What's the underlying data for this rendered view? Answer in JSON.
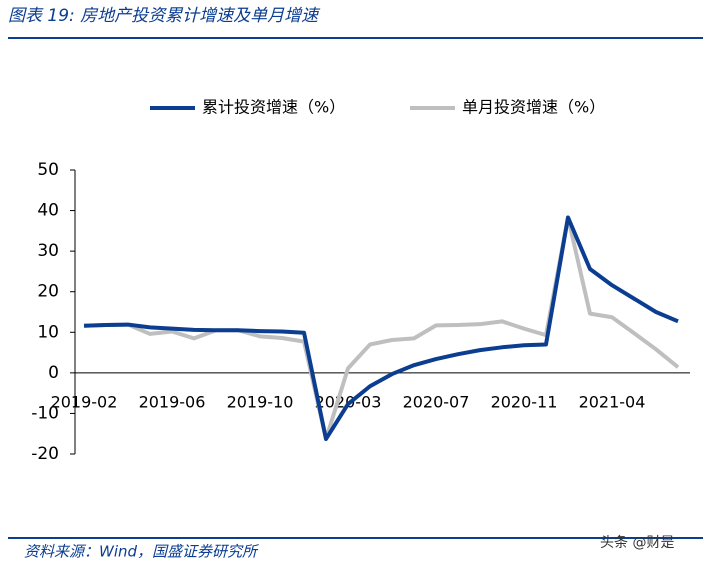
{
  "header": {
    "title": "图表 19:  房地产投资累计增速及单月增速"
  },
  "chart_data": {
    "type": "line",
    "categories": [
      "2019-02",
      null,
      null,
      null,
      "2019-06",
      null,
      null,
      null,
      "2019-10",
      null,
      null,
      null,
      "2020-03",
      null,
      null,
      null,
      "2020-07",
      null,
      null,
      null,
      "2020-11",
      null,
      null,
      null,
      "2021-04",
      null,
      null,
      null
    ],
    "series": [
      {
        "name": "累计投资增速（%）",
        "color": "#0b3d91",
        "values": [
          11.6,
          11.8,
          11.9,
          11.2,
          10.9,
          10.6,
          10.5,
          10.5,
          10.3,
          10.2,
          9.9,
          -16.3,
          -7.7,
          -3.3,
          -0.3,
          1.9,
          3.4,
          4.6,
          5.6,
          6.3,
          6.8,
          7.0,
          38.3,
          25.6,
          21.6,
          18.3,
          15.0,
          12.7
        ]
      },
      {
        "name": "单月投资增速（%）",
        "color": "#bfbfbf",
        "values": [
          11.6,
          11.8,
          11.9,
          9.6,
          10.2,
          8.5,
          10.5,
          10.5,
          9.0,
          8.6,
          7.7,
          -16.3,
          1.1,
          7.0,
          8.1,
          8.5,
          11.7,
          11.8,
          12.0,
          12.7,
          10.9,
          9.3,
          38.3,
          14.6,
          13.7,
          9.8,
          5.8,
          1.4
        ]
      }
    ],
    "ylim": [
      -20,
      50
    ],
    "yticks": [
      -20,
      -10,
      0,
      10,
      20,
      30,
      40,
      50
    ]
  },
  "footer": {
    "source": "资料来源：Wind，国盛证券研究所",
    "watermark": "头条 @财是"
  }
}
